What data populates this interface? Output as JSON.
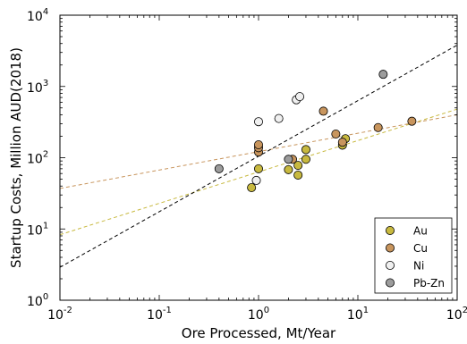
{
  "chart_data": {
    "type": "scatter",
    "xlabel": "Ore Processed, Mt/Year",
    "ylabel": "Startup Costs, Million AUD(2018)",
    "xscale": "log",
    "yscale": "log",
    "xlim": [
      0.01,
      100
    ],
    "ylim": [
      1,
      10000
    ],
    "x_ticks": [
      {
        "base": "10",
        "exp": "-2",
        "value": 0.01
      },
      {
        "base": "10",
        "exp": "-1",
        "value": 0.1
      },
      {
        "base": "10",
        "exp": "0",
        "value": 1
      },
      {
        "base": "10",
        "exp": "1",
        "value": 10
      },
      {
        "base": "10",
        "exp": "2",
        "value": 100
      }
    ],
    "y_ticks": [
      {
        "base": "10",
        "exp": "0",
        "value": 1
      },
      {
        "base": "10",
        "exp": "1",
        "value": 10
      },
      {
        "base": "10",
        "exp": "2",
        "value": 100
      },
      {
        "base": "10",
        "exp": "3",
        "value": 1000
      },
      {
        "base": "10",
        "exp": "4",
        "value": 10000
      }
    ],
    "grid": false,
    "legend_position": "bottom-right",
    "series": [
      {
        "name": "Au",
        "color": "#c8b93f",
        "points": [
          {
            "x": 0.85,
            "y": 38
          },
          {
            "x": 1.0,
            "y": 70
          },
          {
            "x": 2.0,
            "y": 68
          },
          {
            "x": 2.5,
            "y": 57
          },
          {
            "x": 2.5,
            "y": 78
          },
          {
            "x": 3.0,
            "y": 95
          },
          {
            "x": 3.0,
            "y": 130
          },
          {
            "x": 7.0,
            "y": 150
          },
          {
            "x": 7.5,
            "y": 185
          }
        ]
      },
      {
        "name": "Cu",
        "color": "#c8955d",
        "points": [
          {
            "x": 1.0,
            "y": 120
          },
          {
            "x": 1.0,
            "y": 138
          },
          {
            "x": 1.0,
            "y": 152
          },
          {
            "x": 2.2,
            "y": 95
          },
          {
            "x": 4.5,
            "y": 450
          },
          {
            "x": 6.0,
            "y": 215
          },
          {
            "x": 7.0,
            "y": 165
          },
          {
            "x": 16,
            "y": 265
          },
          {
            "x": 35,
            "y": 325
          }
        ]
      },
      {
        "name": "Ni",
        "color": "#f0f0f0",
        "points": [
          {
            "x": 0.95,
            "y": 48
          },
          {
            "x": 1.0,
            "y": 320
          },
          {
            "x": 1.6,
            "y": 355
          },
          {
            "x": 2.4,
            "y": 650
          },
          {
            "x": 2.6,
            "y": 720
          }
        ]
      },
      {
        "name": "Pb-Zn",
        "color": "#9c9c9c",
        "points": [
          {
            "x": 0.4,
            "y": 70
          },
          {
            "x": 2.0,
            "y": 95
          },
          {
            "x": 18,
            "y": 1480
          }
        ]
      }
    ],
    "fit_lines": [
      {
        "color": "#c8b93f",
        "style": "dashed",
        "x": [
          0.01,
          100
        ],
        "y": [
          8.3,
          480
        ]
      },
      {
        "color": "#c8955d",
        "style": "dashed",
        "x": [
          0.01,
          100
        ],
        "y": [
          37,
          400
        ]
      },
      {
        "color": "#000000",
        "style": "dashed",
        "x": [
          0.01,
          100
        ],
        "y": [
          2.9,
          3800
        ]
      }
    ]
  }
}
